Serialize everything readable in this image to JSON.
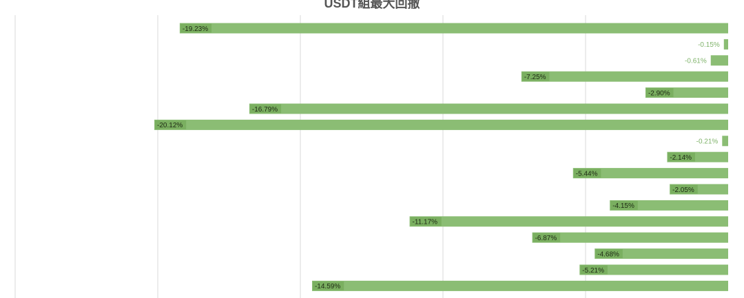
{
  "chart_data": {
    "type": "bar",
    "orientation": "horizontal",
    "title": "USDT組最大回撤",
    "categories": [],
    "values": [
      -19.23,
      -0.15,
      -0.61,
      -7.25,
      -2.9,
      -16.79,
      -20.12,
      -0.21,
      -2.14,
      -5.44,
      -2.05,
      -4.15,
      -11.17,
      -6.87,
      -4.68,
      -5.21,
      -14.59
    ],
    "labels": [
      "-19.23%",
      "-0.15%",
      "-0.61%",
      "-7.25%",
      "-2.90%",
      "-16.79%",
      "-20.12%",
      "-0.21%",
      "-2.14%",
      "-5.44%",
      "-2.05%",
      "-4.15%",
      "-11.17%",
      "-6.87%",
      "-4.68%",
      "-5.21%",
      "-14.59%"
    ],
    "xlim": [
      -25,
      0
    ],
    "grid": true,
    "colors": {
      "bar": "#8bbd74",
      "label_bg": "#8bbd74",
      "label_text": "#1e2a14",
      "outside_label": "#7fb36a",
      "grid": "#d9d9d9"
    }
  }
}
